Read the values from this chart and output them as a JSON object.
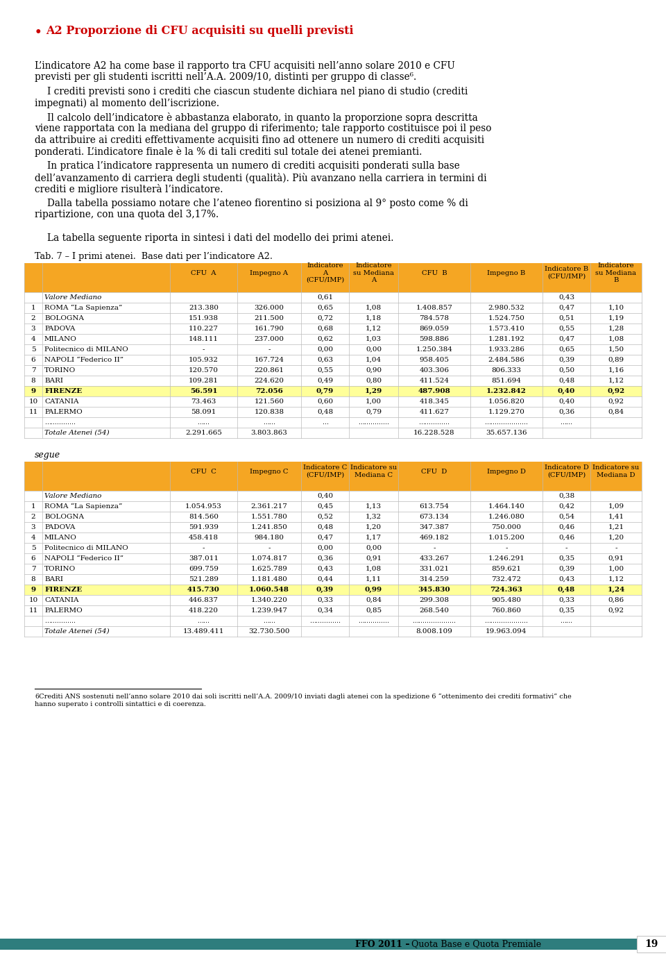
{
  "title_bullet": "A2 Proporzione di CFU acquisiti su quelli previsti",
  "tab_caption": "Tab. 7 – I primi atenei.  Base dati per l’indicatore A2.",
  "segue_label": "segue",
  "firenze_bg": "#FFFF99",
  "table1_data": [
    [
      "Valore Mediano",
      "",
      "",
      "0,61",
      "",
      "",
      "",
      "0,43",
      ""
    ],
    [
      "1",
      "ROMA “La Sapienza”",
      "213.380",
      "326.000",
      "0,65",
      "1,08",
      "1.408.857",
      "2.980.532",
      "0,47",
      "1,10"
    ],
    [
      "2",
      "BOLOGNA",
      "151.938",
      "211.500",
      "0,72",
      "1,18",
      "784.578",
      "1.524.750",
      "0,51",
      "1,19"
    ],
    [
      "3",
      "PADOVA",
      "110.227",
      "161.790",
      "0,68",
      "1,12",
      "869.059",
      "1.573.410",
      "0,55",
      "1,28"
    ],
    [
      "4",
      "MILANO",
      "148.111",
      "237.000",
      "0,62",
      "1,03",
      "598.886",
      "1.281.192",
      "0,47",
      "1,08"
    ],
    [
      "5",
      "Politecnico di MILANO",
      "-",
      "-",
      "0,00",
      "0,00",
      "1.250.384",
      "1.933.286",
      "0,65",
      "1,50"
    ],
    [
      "6",
      "NAPOLI “Federico II”",
      "105.932",
      "167.724",
      "0,63",
      "1,04",
      "958.405",
      "2.484.586",
      "0,39",
      "0,89"
    ],
    [
      "7",
      "TORINO",
      "120.570",
      "220.861",
      "0,55",
      "0,90",
      "403.306",
      "806.333",
      "0,50",
      "1,16"
    ],
    [
      "8",
      "BARI",
      "109.281",
      "224.620",
      "0,49",
      "0,80",
      "411.524",
      "851.694",
      "0,48",
      "1,12"
    ],
    [
      "9",
      "FIRENZE",
      "56.591",
      "72.056",
      "0,79",
      "1,29",
      "487.908",
      "1.232.842",
      "0,40",
      "0,92"
    ],
    [
      "10",
      "CATANIA",
      "73.463",
      "121.560",
      "0,60",
      "1,00",
      "418.345",
      "1.056.820",
      "0,40",
      "0,92"
    ],
    [
      "11",
      "PALERMO",
      "58.091",
      "120.838",
      "0,48",
      "0,79",
      "411.627",
      "1.129.270",
      "0,36",
      "0,84"
    ],
    [
      "……………",
      "……",
      "……",
      "…",
      "……………",
      "……………",
      "…………………",
      "……",
      "……",
      ""
    ],
    [
      "",
      "Totale Atenei (54)",
      "2.291.665",
      "3.803.863",
      "",
      "",
      "16.228.528",
      "35.657.136",
      "",
      ""
    ]
  ],
  "table2_data": [
    [
      "Valore Mediano",
      "",
      "",
      "0,40",
      "",
      "",
      "",
      "0,38",
      ""
    ],
    [
      "1",
      "ROMA “La Sapienza”",
      "1.054.953",
      "2.361.217",
      "0,45",
      "1,13",
      "613.754",
      "1.464.140",
      "0,42",
      "1,09"
    ],
    [
      "2",
      "BOLOGNA",
      "814.560",
      "1.551.780",
      "0,52",
      "1,32",
      "673.134",
      "1.246.080",
      "0,54",
      "1,41"
    ],
    [
      "3",
      "PADOVA",
      "591.939",
      "1.241.850",
      "0,48",
      "1,20",
      "347.387",
      "750.000",
      "0,46",
      "1,21"
    ],
    [
      "4",
      "MILANO",
      "458.418",
      "984.180",
      "0,47",
      "1,17",
      "469.182",
      "1.015.200",
      "0,46",
      "1,20"
    ],
    [
      "5",
      "Politecnico di MILANO",
      "-",
      "-",
      "0,00",
      "0,00",
      "-",
      "-",
      "-",
      "-"
    ],
    [
      "6",
      "NAPOLI “Federico II”",
      "387.011",
      "1.074.817",
      "0,36",
      "0,91",
      "433.267",
      "1.246.291",
      "0,35",
      "0,91"
    ],
    [
      "7",
      "TORINO",
      "699.759",
      "1.625.789",
      "0,43",
      "1,08",
      "331.021",
      "859.621",
      "0,39",
      "1,00"
    ],
    [
      "8",
      "BARI",
      "521.289",
      "1.181.480",
      "0,44",
      "1,11",
      "314.259",
      "732.472",
      "0,43",
      "1,12"
    ],
    [
      "9",
      "FIRENZE",
      "415.730",
      "1.060.548",
      "0,39",
      "0,99",
      "345.830",
      "724.363",
      "0,48",
      "1,24"
    ],
    [
      "10",
      "CATANIA",
      "446.837",
      "1.340.220",
      "0,33",
      "0,84",
      "299.308",
      "905.480",
      "0,33",
      "0,86"
    ],
    [
      "11",
      "PALERMO",
      "418.220",
      "1.239.947",
      "0,34",
      "0,85",
      "268.540",
      "760.860",
      "0,35",
      "0,92"
    ],
    [
      "……………",
      "……",
      "……",
      "……………",
      "……………",
      "…………………",
      "…………………",
      "……",
      "…………………",
      ""
    ],
    [
      "",
      "Totale Atenei (54)",
      "13.489.411",
      "32.730.500",
      "",
      "",
      "8.008.109",
      "19.963.094",
      "",
      ""
    ]
  ],
  "footer_bar_color": "#2E7D7D",
  "footer_text_bold": "FFO 2011 –",
  "footer_text_normal": "Quota Base e Quota Premiale",
  "footer_page": "19",
  "background_color": "#ffffff",
  "red_color": "#cc0000",
  "header_orange": "#F5A623"
}
